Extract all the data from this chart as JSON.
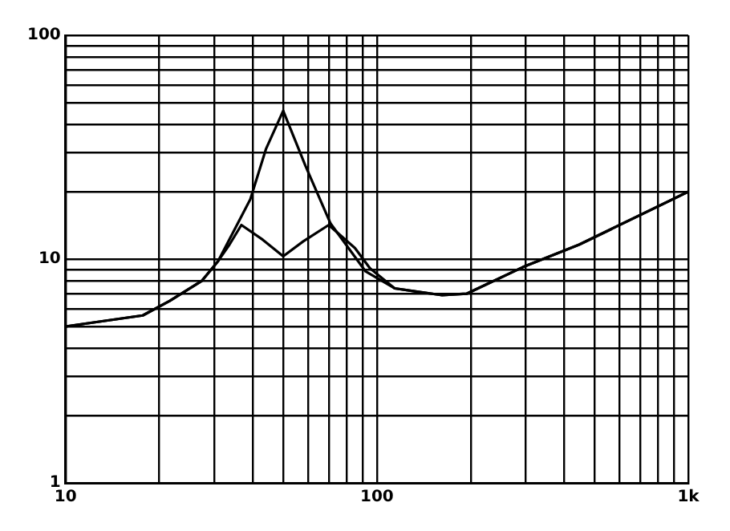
{
  "chart_data": {
    "type": "line",
    "log": "xy",
    "grid": true,
    "marker": "none",
    "line_style": "solid",
    "legend": false,
    "xlim": [
      10,
      1000
    ],
    "ylim": [
      1,
      100
    ],
    "xticks": [
      {
        "value": 10,
        "label": "10"
      },
      {
        "value": 20,
        "label": null
      },
      {
        "value": 30,
        "label": null
      },
      {
        "value": 40,
        "label": null
      },
      {
        "value": 50,
        "label": null
      },
      {
        "value": 60,
        "label": null
      },
      {
        "value": 70,
        "label": null
      },
      {
        "value": 80,
        "label": null
      },
      {
        "value": 90,
        "label": null
      },
      {
        "value": 100,
        "label": "100"
      },
      {
        "value": 200,
        "label": null
      },
      {
        "value": 300,
        "label": null
      },
      {
        "value": 400,
        "label": null
      },
      {
        "value": 500,
        "label": null
      },
      {
        "value": 600,
        "label": null
      },
      {
        "value": 700,
        "label": null
      },
      {
        "value": 800,
        "label": null
      },
      {
        "value": 900,
        "label": null
      },
      {
        "value": 1000,
        "label": "1k"
      }
    ],
    "yticks": [
      {
        "value": 1,
        "label": "1"
      },
      {
        "value": 2,
        "label": null
      },
      {
        "value": 3,
        "label": null
      },
      {
        "value": 4,
        "label": null
      },
      {
        "value": 5,
        "label": null
      },
      {
        "value": 6,
        "label": null
      },
      {
        "value": 7,
        "label": null
      },
      {
        "value": 8,
        "label": null
      },
      {
        "value": 9,
        "label": null
      },
      {
        "value": 10,
        "label": "10"
      },
      {
        "value": 20,
        "label": null
      },
      {
        "value": 30,
        "label": null
      },
      {
        "value": 40,
        "label": null
      },
      {
        "value": 50,
        "label": null
      },
      {
        "value": 60,
        "label": null
      },
      {
        "value": 70,
        "label": null
      },
      {
        "value": 80,
        "label": null
      },
      {
        "value": 90,
        "label": null
      },
      {
        "value": 100,
        "label": "100"
      }
    ],
    "series": [
      {
        "color": "#000000",
        "x": [
          10,
          17.7,
          21.6,
          27.4,
          30.9,
          39.2,
          44,
          50,
          59,
          71,
          92,
          114,
          162,
          194,
          294,
          446,
          1000
        ],
        "values": [
          5,
          5.6,
          6.5,
          8,
          9.8,
          18.5,
          31,
          46,
          26,
          14.4,
          8.8,
          7.4,
          6.9,
          7,
          9.2,
          11.6,
          20
        ]
      },
      {
        "color": "#000000",
        "x": [
          10,
          17.7,
          21.6,
          27.4,
          30.9,
          33.6,
          36.7,
          43,
          50,
          58,
          70,
          85,
          95,
          114,
          162,
          194,
          294,
          446,
          1000
        ],
        "values": [
          5,
          5.6,
          6.5,
          8,
          9.8,
          11.6,
          14.2,
          12.2,
          10.3,
          12,
          14.2,
          11.2,
          9.1,
          7.4,
          6.9,
          7,
          9.2,
          11.6,
          20
        ]
      }
    ]
  }
}
